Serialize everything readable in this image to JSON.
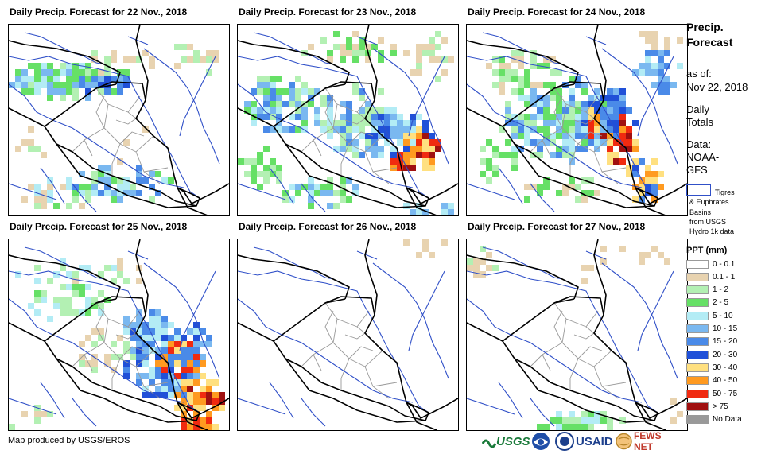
{
  "panels": [
    {
      "title": "Daily Precip. Forecast for 22 Nov., 2018",
      "day": 0
    },
    {
      "title": "Daily Precip. Forecast for 23 Nov., 2018",
      "day": 1
    },
    {
      "title": "Daily Precip. Forecast for 24 Nov., 2018",
      "day": 2
    },
    {
      "title": "Daily Precip. Forecast for 25 Nov., 2018",
      "day": 3
    },
    {
      "title": "Daily Precip. Forecast for 26 Nov., 2018",
      "day": 4
    },
    {
      "title": "Daily Precip. Forecast for 27 Nov., 2018",
      "day": 5
    }
  ],
  "side": {
    "heading1": "Precip.",
    "heading2": "Forecast",
    "asof1": "as of:",
    "asof2": "Nov 22, 2018",
    "daily1": "Daily",
    "daily2": "Totals",
    "data1": "Data:",
    "data2": "NOAA-",
    "data3": "GFS",
    "basin1": "Tigres",
    "basin2": "& Euphrates",
    "basin3": "Basins",
    "basin4": "from USGS",
    "basin5": "Hydro 1k data",
    "legend_title": "PPT (mm)"
  },
  "legend": [
    {
      "label": "0 - 0.1",
      "color": "#ffffff"
    },
    {
      "label": "0.1 - 1",
      "color": "#e8d3b0"
    },
    {
      "label": "1 - 2",
      "color": "#b3f0b3"
    },
    {
      "label": "2 - 5",
      "color": "#66e066"
    },
    {
      "label": "5 - 10",
      "color": "#b3ecf5"
    },
    {
      "label": "10 - 15",
      "color": "#7ab8f0"
    },
    {
      "label": "15 - 20",
      "color": "#4a8ae8"
    },
    {
      "label": "20 - 30",
      "color": "#2050d8"
    },
    {
      "label": "30 - 40",
      "color": "#ffe080"
    },
    {
      "label": "40 - 50",
      "color": "#ff9a20"
    },
    {
      "label": "50 - 75",
      "color": "#f02a10"
    },
    {
      "label": "> 75",
      "color": "#a01010"
    },
    {
      "label": "No Data",
      "color": "#999999"
    }
  ],
  "credit": "Map produced by USGS/EROS",
  "logos": {
    "usgs": "USGS",
    "usaid": "USAID",
    "fews": "FEWS NET"
  },
  "colors": {
    "river": "#3050c8",
    "border": "#000000",
    "admin": "#999999"
  }
}
